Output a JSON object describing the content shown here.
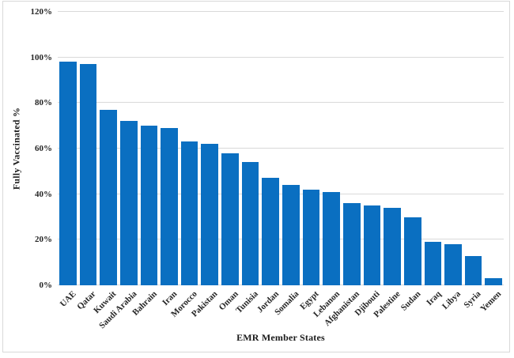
{
  "chart_data": {
    "type": "bar",
    "title": "",
    "xlabel": "EMR Member States",
    "ylabel": "Fully Vaccinated %",
    "categories": [
      "UAE",
      "Qatar",
      "Kuwait",
      "Saudi Arabia",
      "Bahrain",
      "Iran",
      "Morocco",
      "Pakistan",
      "Oman",
      "Tunisia",
      "Jordan",
      "Somalia",
      "Egypt",
      "Lebanon",
      "Afghanistan",
      "Djibouti",
      "Palestine",
      "Sudan",
      "Iraq",
      "Libya",
      "Syria",
      "Yemen"
    ],
    "values": [
      98,
      97,
      77,
      72,
      70,
      69,
      63,
      62,
      58,
      54,
      47,
      44,
      42,
      41,
      36,
      35,
      34,
      30,
      19,
      18,
      13,
      3
    ],
    "ylim": [
      0,
      120
    ],
    "yticks": [
      0,
      20,
      40,
      60,
      80,
      100,
      120
    ],
    "ytick_labels": [
      "0%",
      "20%",
      "40%",
      "60%",
      "80%",
      "100%",
      "120%"
    ],
    "grid": true,
    "legend": false,
    "colors": {
      "bar": "#0a6fc1",
      "gridline": "#d9d9d9",
      "axis_text": "#262626",
      "chart_border": "#d9d9d9",
      "background": "#ffffff"
    }
  }
}
